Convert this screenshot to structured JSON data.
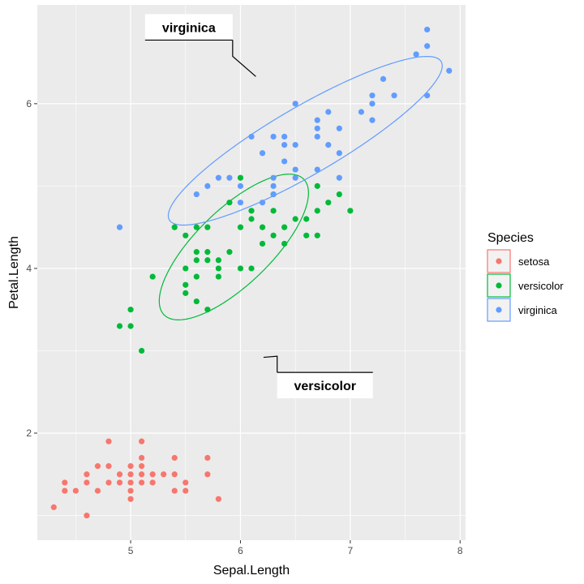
{
  "chart_data": {
    "type": "scatter",
    "xlabel": "Sepal.Length",
    "ylabel": "Petal.Length",
    "xlim": [
      4.15,
      8.05
    ],
    "ylim": [
      0.7,
      7.2
    ],
    "xticks": [
      5,
      6,
      7,
      8
    ],
    "yticks": [
      2,
      4,
      6
    ],
    "grid": true,
    "legend": {
      "title": "Species",
      "placement": "right",
      "entries": [
        "setosa",
        "versicolor",
        "virginica"
      ]
    },
    "colors": {
      "setosa": "#F8766D",
      "versicolor": "#00BA38",
      "virginica": "#619CFF",
      "panel": "#EBEBEB",
      "grid": "#FFFFFF"
    },
    "series": [
      {
        "name": "setosa",
        "points": [
          [
            4.3,
            1.1
          ],
          [
            4.4,
            1.4
          ],
          [
            4.4,
            1.3
          ],
          [
            4.5,
            1.3
          ],
          [
            4.6,
            1.5
          ],
          [
            4.6,
            1.4
          ],
          [
            4.6,
            1.0
          ],
          [
            4.7,
            1.6
          ],
          [
            4.7,
            1.3
          ],
          [
            4.8,
            1.6
          ],
          [
            4.8,
            1.4
          ],
          [
            4.8,
            1.9
          ],
          [
            4.9,
            1.5
          ],
          [
            4.9,
            1.4
          ],
          [
            5.0,
            1.6
          ],
          [
            5.0,
            1.5
          ],
          [
            5.0,
            1.4
          ],
          [
            5.0,
            1.3
          ],
          [
            5.0,
            1.2
          ],
          [
            5.1,
            1.9
          ],
          [
            5.1,
            1.7
          ],
          [
            5.1,
            1.6
          ],
          [
            5.1,
            1.5
          ],
          [
            5.1,
            1.4
          ],
          [
            5.2,
            1.5
          ],
          [
            5.2,
            1.4
          ],
          [
            5.3,
            1.5
          ],
          [
            5.4,
            1.7
          ],
          [
            5.4,
            1.5
          ],
          [
            5.4,
            1.3
          ],
          [
            5.5,
            1.4
          ],
          [
            5.5,
            1.3
          ],
          [
            5.7,
            1.7
          ],
          [
            5.7,
            1.5
          ],
          [
            5.8,
            1.2
          ]
        ]
      },
      {
        "name": "versicolor",
        "points": [
          [
            4.9,
            3.3
          ],
          [
            5.0,
            3.5
          ],
          [
            5.0,
            3.3
          ],
          [
            5.1,
            3.0
          ],
          [
            5.2,
            3.9
          ],
          [
            5.4,
            4.5
          ],
          [
            5.5,
            4.4
          ],
          [
            5.5,
            4.0
          ],
          [
            5.5,
            3.8
          ],
          [
            5.5,
            3.7
          ],
          [
            5.6,
            4.5
          ],
          [
            5.6,
            4.2
          ],
          [
            5.6,
            4.1
          ],
          [
            5.6,
            3.9
          ],
          [
            5.6,
            3.6
          ],
          [
            5.7,
            4.5
          ],
          [
            5.7,
            4.2
          ],
          [
            5.7,
            4.1
          ],
          [
            5.7,
            3.5
          ],
          [
            5.8,
            4.1
          ],
          [
            5.8,
            4.0
          ],
          [
            5.8,
            3.9
          ],
          [
            5.9,
            4.8
          ],
          [
            5.9,
            4.2
          ],
          [
            6.0,
            5.1
          ],
          [
            6.0,
            4.5
          ],
          [
            6.0,
            4.0
          ],
          [
            6.1,
            4.7
          ],
          [
            6.1,
            4.6
          ],
          [
            6.1,
            4.0
          ],
          [
            6.2,
            4.5
          ],
          [
            6.2,
            4.3
          ],
          [
            6.3,
            4.9
          ],
          [
            6.3,
            4.7
          ],
          [
            6.3,
            4.4
          ],
          [
            6.4,
            4.5
          ],
          [
            6.4,
            4.3
          ],
          [
            6.5,
            4.6
          ],
          [
            6.6,
            4.6
          ],
          [
            6.6,
            4.4
          ],
          [
            6.7,
            5.0
          ],
          [
            6.7,
            4.7
          ],
          [
            6.7,
            4.4
          ],
          [
            6.8,
            4.8
          ],
          [
            6.9,
            4.9
          ],
          [
            7.0,
            4.7
          ]
        ]
      },
      {
        "name": "virginica",
        "points": [
          [
            4.9,
            4.5
          ],
          [
            5.6,
            4.9
          ],
          [
            5.7,
            5.0
          ],
          [
            5.8,
            5.1
          ],
          [
            5.9,
            5.1
          ],
          [
            6.0,
            5.0
          ],
          [
            6.0,
            4.8
          ],
          [
            6.1,
            5.6
          ],
          [
            6.2,
            5.4
          ],
          [
            6.2,
            4.8
          ],
          [
            6.3,
            5.6
          ],
          [
            6.3,
            5.1
          ],
          [
            6.3,
            5.0
          ],
          [
            6.3,
            4.9
          ],
          [
            6.4,
            5.6
          ],
          [
            6.4,
            5.5
          ],
          [
            6.4,
            5.3
          ],
          [
            6.5,
            6.0
          ],
          [
            6.5,
            5.5
          ],
          [
            6.5,
            5.2
          ],
          [
            6.5,
            5.1
          ],
          [
            6.7,
            5.8
          ],
          [
            6.7,
            5.7
          ],
          [
            6.7,
            5.6
          ],
          [
            6.7,
            5.2
          ],
          [
            6.8,
            5.9
          ],
          [
            6.8,
            5.5
          ],
          [
            6.9,
            5.7
          ],
          [
            6.9,
            5.4
          ],
          [
            6.9,
            5.1
          ],
          [
            7.1,
            5.9
          ],
          [
            7.2,
            6.1
          ],
          [
            7.2,
            6.0
          ],
          [
            7.2,
            5.8
          ],
          [
            7.3,
            6.3
          ],
          [
            7.4,
            6.1
          ],
          [
            7.6,
            6.6
          ],
          [
            7.7,
            6.9
          ],
          [
            7.7,
            6.7
          ],
          [
            7.7,
            6.1
          ],
          [
            7.9,
            6.4
          ]
        ]
      }
    ],
    "ellipses": [
      {
        "series": "versicolor",
        "center": [
          5.94,
          4.26
        ],
        "semi_axes": [
          1.047,
          0.385
        ],
        "angle_deg": 54.9
      },
      {
        "series": "virginica",
        "center": [
          6.59,
          5.55
        ],
        "semi_axes": [
          1.57,
          0.374
        ],
        "angle_deg": 38.7
      }
    ],
    "annotations": [
      {
        "text": "virginica",
        "label_at": [
          5.53,
          6.93
        ],
        "points_to": [
          6.14,
          6.33
        ]
      },
      {
        "text": "versicolor",
        "label_at": [
          6.77,
          2.58
        ],
        "points_to": [
          6.21,
          2.92
        ]
      }
    ]
  }
}
